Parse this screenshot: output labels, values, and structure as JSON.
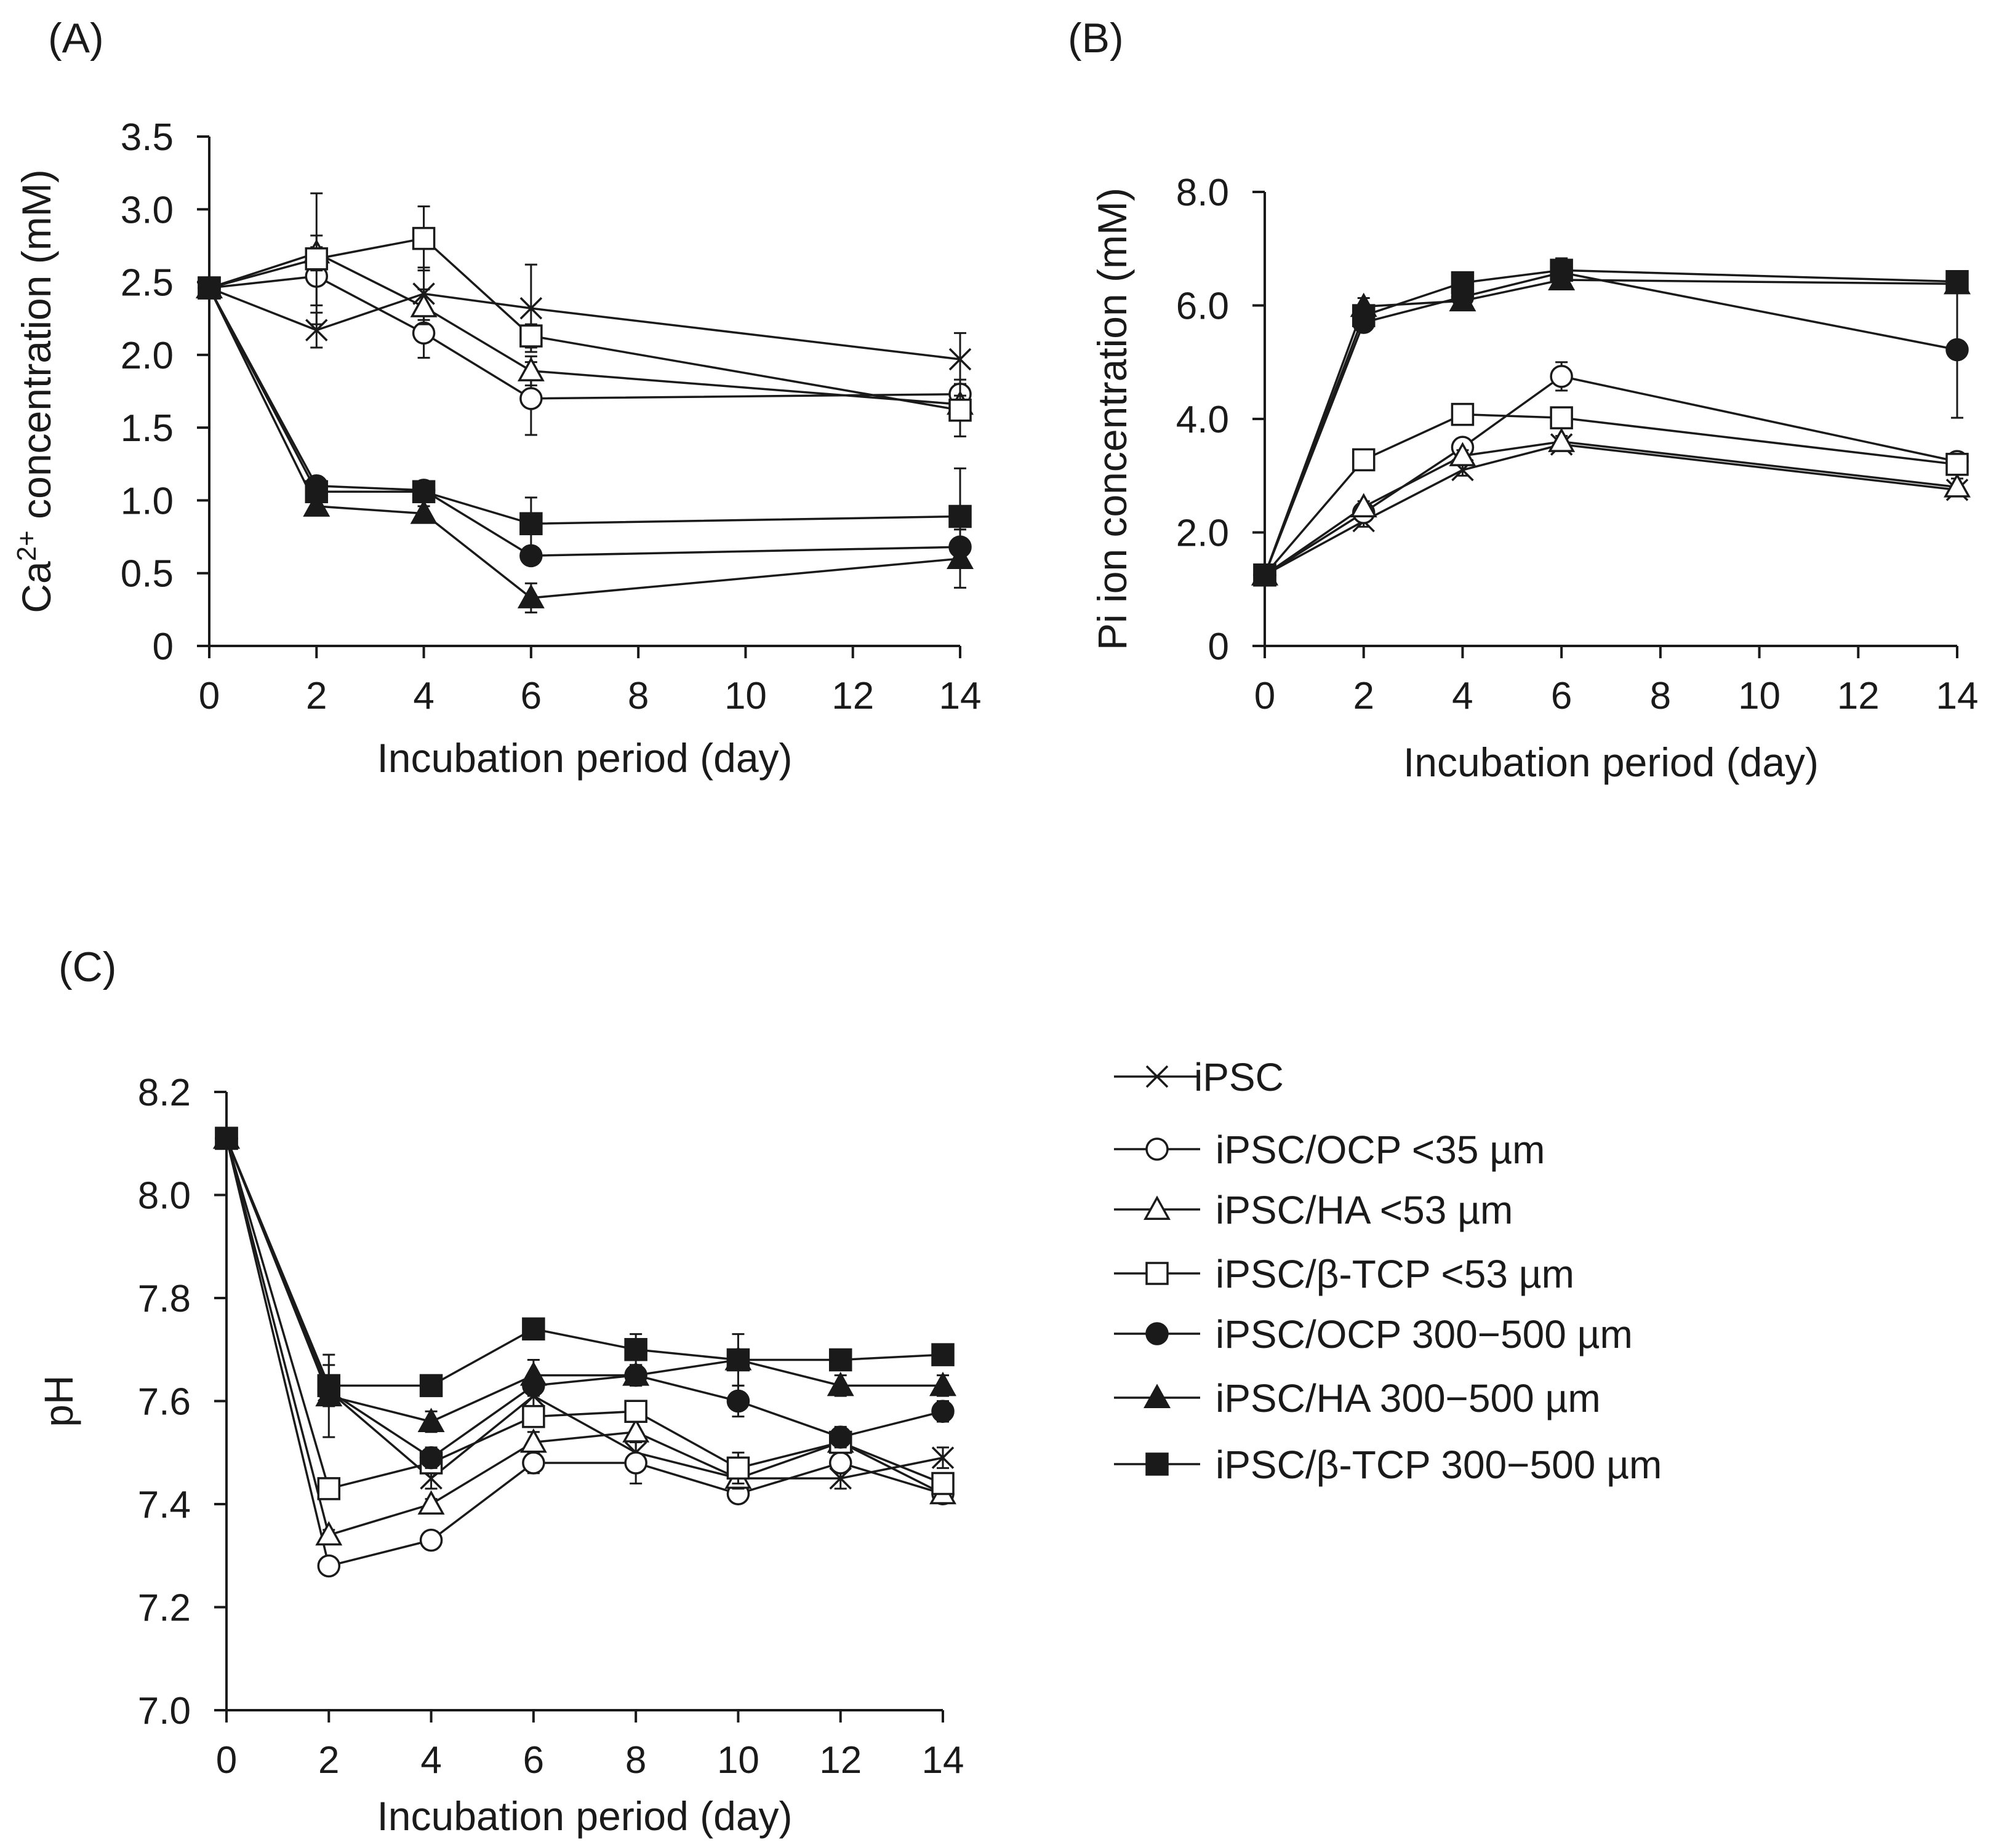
{
  "chart_data": [
    {
      "id": "A",
      "type": "line",
      "panel_label": "(A)",
      "xlabel": "Incubation period (day)",
      "ylabel_parts": [
        "Ca",
        "2+",
        " concentration (mM)"
      ],
      "x_ticks": [
        0,
        2,
        4,
        6,
        8,
        10,
        12,
        14
      ],
      "x_tick_labels": [
        "0",
        "2",
        "4",
        "6",
        "8",
        "10",
        "12",
        "14"
      ],
      "y_ticks": [
        0,
        0.5,
        1.0,
        1.5,
        2.0,
        2.5,
        3.0,
        3.5
      ],
      "y_tick_labels": [
        "0",
        "0.5",
        "1.0",
        "1.5",
        "2.0",
        "2.5",
        "3.0",
        "3.5"
      ],
      "xlim": [
        0,
        14
      ],
      "ylim": [
        0,
        3.5
      ],
      "x": [
        0,
        2,
        4,
        6,
        14
      ],
      "series": [
        {
          "name": "iPSC",
          "marker": "x",
          "values": [
            2.46,
            2.17,
            2.42,
            2.32,
            1.97
          ],
          "errors": [
            0,
            0.12,
            0.18,
            0.3,
            0.18
          ]
        },
        {
          "name": "iPSC/OCP <35 µm",
          "marker": "o-open",
          "values": [
            2.46,
            2.54,
            2.15,
            1.7,
            1.73
          ],
          "errors": [
            0,
            0.2,
            0.17,
            0.25,
            0.1
          ]
        },
        {
          "name": "iPSC/HA <53 µm",
          "marker": "tri-open",
          "values": [
            2.46,
            2.7,
            2.33,
            1.89,
            1.66
          ],
          "errors": [
            0,
            0.12,
            0.12,
            0.1,
            0.06
          ]
        },
        {
          "name": "iPSC/β-TCP <53 µm",
          "marker": "sq-open",
          "values": [
            2.46,
            2.66,
            2.8,
            2.13,
            1.62
          ],
          "errors": [
            0,
            0.45,
            0.22,
            0.08,
            0.18
          ]
        },
        {
          "name": "iPSC/OCP 300−500 µm",
          "marker": "o-filled",
          "values": [
            2.46,
            1.1,
            1.07,
            0.62,
            0.68
          ],
          "errors": [
            0,
            0.05,
            0.04,
            0.04,
            0.06
          ]
        },
        {
          "name": "iPSC/HA 300−500 µm",
          "marker": "tri-filled",
          "values": [
            2.46,
            0.96,
            0.91,
            0.33,
            0.6
          ],
          "errors": [
            0,
            0.05,
            0.05,
            0.1,
            0.2
          ]
        },
        {
          "name": "iPSC/β-TCP 300−500 µm",
          "marker": "sq-filled",
          "values": [
            2.46,
            1.06,
            1.06,
            0.84,
            0.89
          ],
          "errors": [
            0,
            0.04,
            0.04,
            0.18,
            0.33
          ]
        }
      ]
    },
    {
      "id": "B",
      "type": "line",
      "panel_label": "(B)",
      "xlabel": "Incubation period (day)",
      "ylabel_parts": [
        "Pi ion concentration (mM)"
      ],
      "x_ticks": [
        0,
        2,
        4,
        6,
        8,
        10,
        12,
        14
      ],
      "x_tick_labels": [
        "0",
        "2",
        "4",
        "6",
        "8",
        "10",
        "12",
        "14"
      ],
      "y_ticks": [
        0,
        2,
        4,
        6,
        8
      ],
      "y_tick_labels": [
        "0",
        "2.0",
        "4.0",
        "6.0",
        "8.0"
      ],
      "xlim": [
        0,
        14
      ],
      "ylim": [
        0,
        8
      ],
      "x": [
        0,
        2,
        4,
        6,
        14
      ],
      "series": [
        {
          "name": "iPSC",
          "marker": "x",
          "values": [
            1.25,
            2.2,
            3.1,
            3.55,
            2.75
          ],
          "errors": [
            0.1,
            0.1,
            0.1,
            0.1,
            0.1
          ]
        },
        {
          "name": "iPSC/OCP <35 µm",
          "marker": "o-open",
          "values": [
            1.25,
            2.35,
            3.5,
            4.75,
            3.25
          ],
          "errors": [
            0.1,
            0.1,
            0.1,
            0.25,
            0.1
          ]
        },
        {
          "name": "iPSC/HA <53 µm",
          "marker": "tri-open",
          "values": [
            1.25,
            2.45,
            3.35,
            3.6,
            2.8
          ],
          "errors": [
            0.1,
            0.1,
            0.1,
            0.1,
            0.15
          ]
        },
        {
          "name": "iPSC/β-TCP <53 µm",
          "marker": "sq-open",
          "values": [
            1.25,
            3.28,
            4.08,
            4.02,
            3.2
          ],
          "errors": [
            0.1,
            0.1,
            0.1,
            0.1,
            0.1
          ]
        },
        {
          "name": "iPSC/OCP 300−500 µm",
          "marker": "o-filled",
          "values": [
            1.25,
            5.7,
            6.15,
            6.58,
            5.22
          ],
          "errors": [
            0.15,
            0.15,
            0.15,
            0.25,
            1.2
          ]
        },
        {
          "name": "iPSC/HA 300−500 µm",
          "marker": "tri-filled",
          "values": [
            1.25,
            5.98,
            6.08,
            6.45,
            6.38
          ],
          "errors": [
            0.15,
            0.15,
            0.15,
            0.15,
            0.15
          ]
        },
        {
          "name": "iPSC/β-TCP 300−500 µm",
          "marker": "sq-filled",
          "values": [
            1.25,
            5.82,
            6.4,
            6.62,
            6.42
          ],
          "errors": [
            0.15,
            0.15,
            0.1,
            0.2,
            0.1
          ]
        }
      ]
    },
    {
      "id": "C",
      "type": "line",
      "panel_label": "(C)",
      "xlabel": "Incubation period (day)",
      "ylabel_parts": [
        "pH"
      ],
      "x_ticks": [
        0,
        2,
        4,
        6,
        8,
        10,
        12,
        14
      ],
      "x_tick_labels": [
        "0",
        "2",
        "4",
        "6",
        "8",
        "10",
        "12",
        "14"
      ],
      "y_ticks": [
        7.0,
        7.2,
        7.4,
        7.6,
        7.8,
        8.0,
        8.2
      ],
      "y_tick_labels": [
        "7.0",
        "7.2",
        "7.4",
        "7.6",
        "7.8",
        "8.0",
        "8.2"
      ],
      "xlim": [
        0,
        14
      ],
      "ylim": [
        7.0,
        8.2
      ],
      "x": [
        0,
        2,
        4,
        6,
        8,
        10,
        12,
        14
      ],
      "series": [
        {
          "name": "iPSC",
          "marker": "x",
          "values": [
            8.11,
            7.62,
            7.45,
            7.61,
            7.5,
            7.45,
            7.45,
            7.49
          ],
          "errors": [
            0,
            0.02,
            0.02,
            0.02,
            0.02,
            0.02,
            0.02,
            0.02
          ]
        },
        {
          "name": "iPSC/OCP <35 µm",
          "marker": "o-open",
          "values": [
            8.11,
            7.28,
            7.33,
            7.48,
            7.48,
            7.42,
            7.48,
            7.42
          ],
          "errors": [
            0,
            0.01,
            0.01,
            0.02,
            0.04,
            0.01,
            0.01,
            0.01
          ]
        },
        {
          "name": "iPSC/HA <53 µm",
          "marker": "tri-open",
          "values": [
            8.11,
            7.34,
            7.4,
            7.52,
            7.54,
            7.45,
            7.52,
            7.42
          ],
          "errors": [
            0,
            0.01,
            0.01,
            0.02,
            0.02,
            0.02,
            0.02,
            0.01
          ]
        },
        {
          "name": "iPSC/β-TCP <53 µm",
          "marker": "sq-open",
          "values": [
            8.11,
            7.43,
            7.48,
            7.57,
            7.58,
            7.47,
            7.52,
            7.44
          ],
          "errors": [
            0,
            0.01,
            0.02,
            0.02,
            0.02,
            0.03,
            0.02,
            0.02
          ]
        },
        {
          "name": "iPSC/OCP 300−500 µm",
          "marker": "o-filled",
          "values": [
            8.11,
            7.62,
            7.49,
            7.63,
            7.65,
            7.6,
            7.53,
            7.58
          ],
          "errors": [
            0,
            0.02,
            0.02,
            0.02,
            0.02,
            0.03,
            0.02,
            0.02
          ]
        },
        {
          "name": "iPSC/HA 300−500 µm",
          "marker": "tri-filled",
          "values": [
            8.11,
            7.61,
            7.56,
            7.65,
            7.65,
            7.68,
            7.63,
            7.63
          ],
          "errors": [
            0,
            0.08,
            0.02,
            0.03,
            0.02,
            0.02,
            0.02,
            0.02
          ]
        },
        {
          "name": "iPSC/β-TCP 300−500 µm",
          "marker": "sq-filled",
          "values": [
            8.11,
            7.63,
            7.63,
            7.74,
            7.7,
            7.68,
            7.68,
            7.69
          ],
          "errors": [
            0,
            0.04,
            0.02,
            0.02,
            0.03,
            0.05,
            0.02,
            0.02
          ]
        }
      ]
    }
  ],
  "legend": {
    "items": [
      {
        "label": "iPSC",
        "marker": "x"
      },
      {
        "label": "iPSC/OCP <35 µm",
        "marker": "o-open"
      },
      {
        "label": "iPSC/HA <53 µm",
        "marker": "tri-open"
      },
      {
        "label": "iPSC/β-TCP <53 µm",
        "marker": "sq-open"
      },
      {
        "label": "iPSC/OCP 300−500 µm",
        "marker": "o-filled"
      },
      {
        "label": "iPSC/HA 300−500 µm",
        "marker": "tri-filled"
      },
      {
        "label": "iPSC/β-TCP 300−500 µm",
        "marker": "sq-filled"
      }
    ]
  }
}
